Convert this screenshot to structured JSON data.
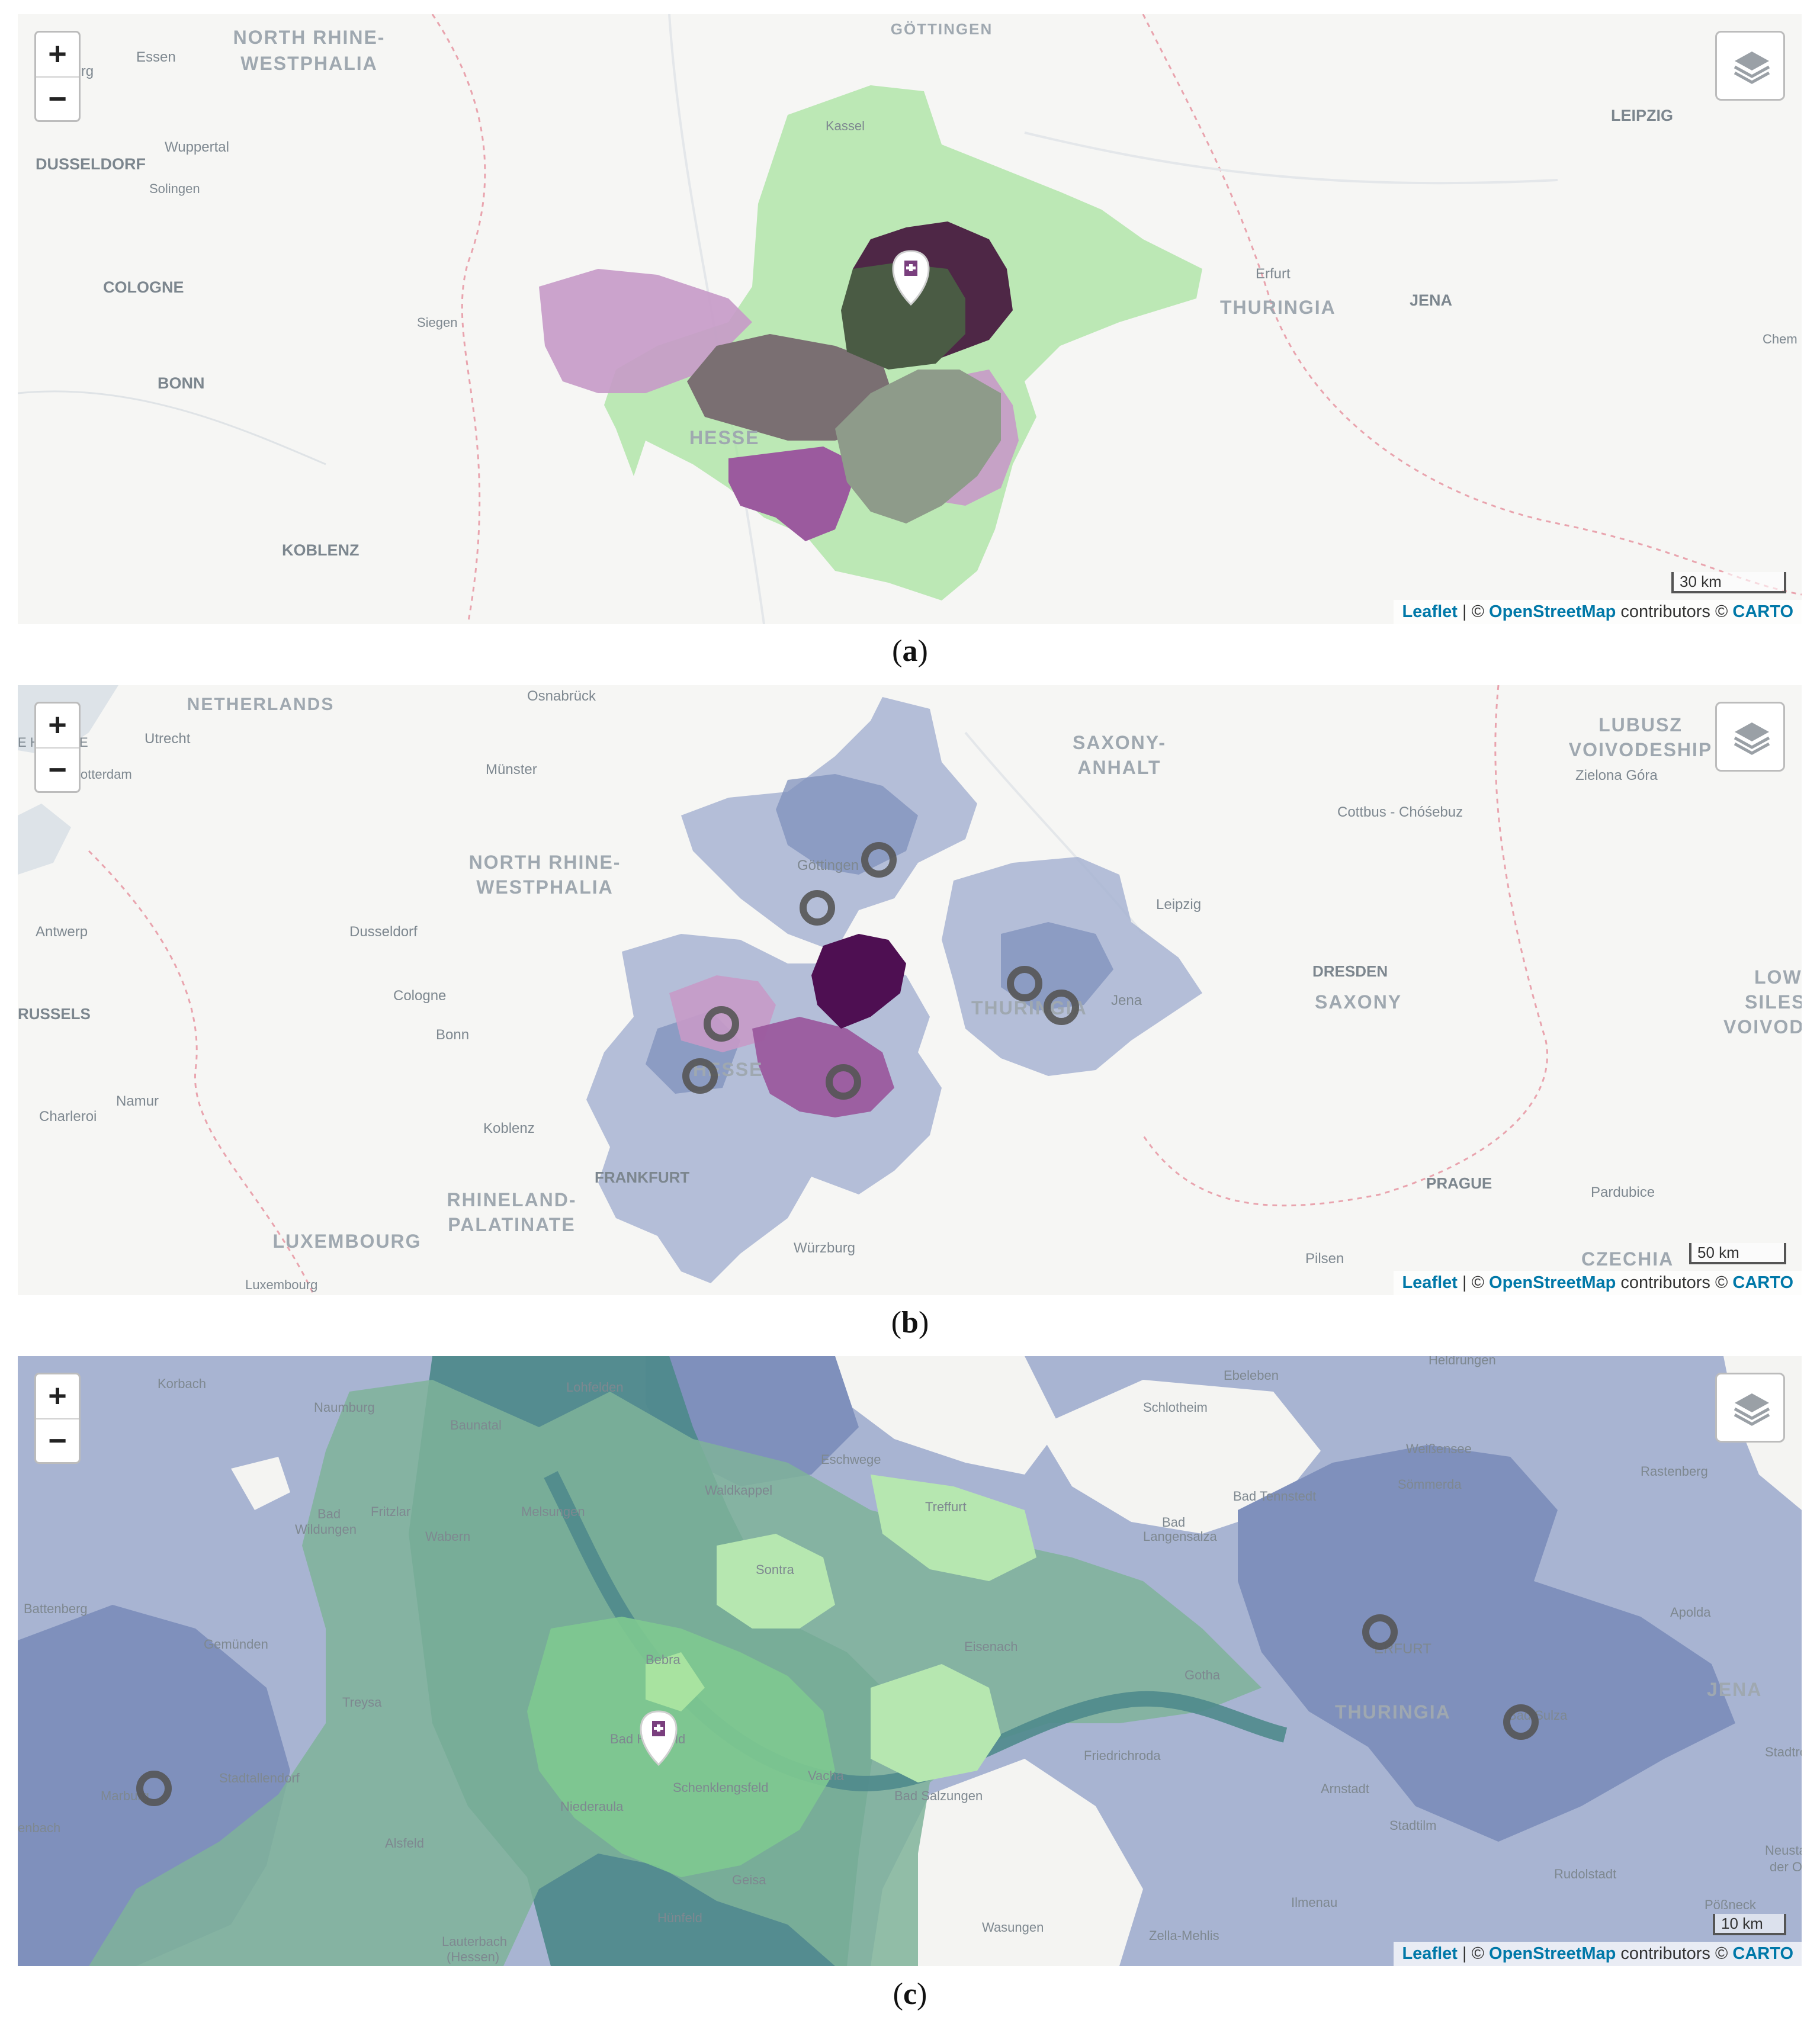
{
  "panels": [
    {
      "caption": "a",
      "zoom_in": "+",
      "zoom_out": "−",
      "scale": "30 km",
      "attribution": {
        "leaflet": "Leaflet",
        "sep1": " | © ",
        "osm": "OpenStreetMap",
        "mid": " contributors © ",
        "carto": "CARTO"
      },
      "places": [
        "GÖTTINGEN",
        "NORTH RHINE-",
        "WESTPHALIA",
        "Essen",
        "sburg",
        "Wuppertal",
        "DUSSELDORF",
        "Solingen",
        "COLOGNE",
        "BONN",
        "Siegen",
        "KOBLENZ",
        "Kassel",
        "Erfurt",
        "THURINGIA",
        "JENA",
        "LEIPZIG",
        "Chem",
        "HESSE"
      ]
    },
    {
      "caption": "b",
      "zoom_in": "+",
      "zoom_out": "−",
      "scale": "50 km",
      "attribution": {
        "leaflet": "Leaflet",
        "sep1": " | © ",
        "osm": "OpenStreetMap",
        "mid": " contributors © ",
        "carto": "CARTO"
      },
      "places": [
        "NETHERLANDS",
        "Osnabrück",
        "Utrecht",
        "E H",
        "E",
        "Rotterdam",
        "Münster",
        "NORTH RHINE-",
        "WESTPHALIA",
        "Antwerp",
        "Dusseldorf",
        "Cologne",
        "Bonn",
        "RUSSELS",
        "Namur",
        "Charleroi",
        "Koblenz",
        "RHINELAND-",
        "PALATINATE",
        "LUXEMBOURG",
        "Luxembourg",
        "FRANKFURT",
        "Würzburg",
        "HESSE",
        "Göttingen",
        "SAXONY-",
        "ANHALT",
        "Leipzig",
        "THURINGIA",
        "Jena",
        "DRESDEN",
        "SAXONY",
        "Cottbus - Chóśebuz",
        "LUBUSZ",
        "VOIVODESHIP",
        "Zielona Góra",
        "LOW",
        "SILES",
        "VOIVOD",
        "PRAGUE",
        "Pardubice",
        "Pilsen",
        "CZECHIA"
      ]
    },
    {
      "caption": "c",
      "zoom_in": "+",
      "zoom_out": "−",
      "scale": "10 km",
      "attribution": {
        "leaflet": "Leaflet",
        "sep1": " | © ",
        "osm": "OpenStreetMap",
        "mid": " contributors © ",
        "carto": "CARTO"
      },
      "places": [
        "Korbach",
        "Naumburg",
        "Baunatal",
        "Lohfelden",
        "Ebeleben",
        "Heldrungen",
        "Schlotheim",
        "Eschwege",
        "Weißensee",
        "Rastenberg",
        "Bad",
        "Wildungen",
        "Fritzlar",
        "Melsungen",
        "Waldkappel",
        "Wabern",
        "Treffurt",
        "Bad Tennstedt",
        "Sömmerda",
        "Bad",
        "Langensalza",
        "Battenberg",
        "Sontra",
        "Gemünden",
        "Bebra",
        "Eisenach",
        "Gotha",
        "Apolda",
        "ERFURT",
        "Treysa",
        "Bad Hersfeld",
        "JENA",
        "Friedrichroda",
        "THURINGIA",
        "Bad Sulza",
        "Stadtroda",
        "Marburg",
        "Stadtallendorf",
        "Niederaula",
        "Schenklengsfeld",
        "Vacha",
        "Bad Salzungen",
        "Arnstadt",
        "Neustad",
        "der Or",
        "enbach",
        "Alsfeld",
        "Stadtilm",
        "Rudolstadt",
        "Geisa",
        "Pößneck",
        "Hünfeld",
        "Wasungen",
        "Ilmenau",
        "Lauterbach",
        "(Hessen)",
        "Zella-Mehlis"
      ]
    }
  ],
  "colors": {
    "map_bg": "#f6f6f4",
    "green_light": "#a8e3a0",
    "purple_light": "#c79ac8",
    "purple_mid": "#9b5a9e",
    "dark_plum": "#4e2746",
    "dark_olive": "#4a5b44",
    "grey_brown": "#7a6f72",
    "sage": "#8e9b8a",
    "blue_light": "#a8b4d2",
    "blue_mid": "#7f90bc",
    "blue_dark": "#5f7aa3",
    "teal": "#4f8a8c",
    "purple_deep": "#4e0f52",
    "border": "#e9a4ae"
  },
  "icons": {
    "hospital_marker": "hospital-marker-icon",
    "station_marker": "ring-marker-icon",
    "layers": "layers-icon"
  }
}
